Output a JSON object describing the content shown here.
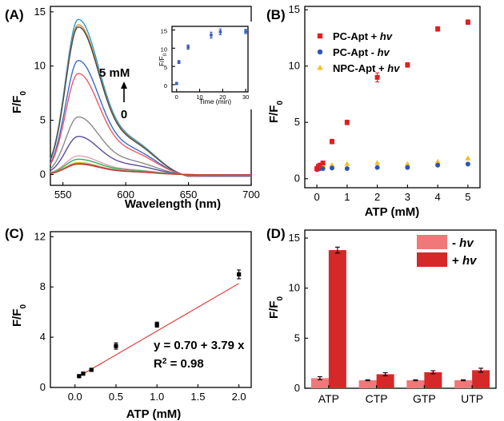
{
  "chart_data": [
    {
      "panel": "(A)",
      "type": "line",
      "xlabel": "Wavelength (nm)",
      "ylabel": "F/F",
      "ylabel_sub": "0",
      "xlim": [
        540,
        700
      ],
      "ylim": [
        -1,
        15.5
      ],
      "xticks": [
        550,
        600,
        650,
        700
      ],
      "yticks": [
        0,
        5,
        10,
        15
      ],
      "annotation_top": "5 mM",
      "annotation_bottom": "0",
      "series": [
        {
          "color": "#2a9bd0",
          "peak": 14.3,
          "shoulder": 5.9
        },
        {
          "color": "#e08a2a",
          "peak": 13.8,
          "shoulder": 5.7
        },
        {
          "color": "#4a4a4a",
          "peak": 13.6,
          "shoulder": 5.6
        },
        {
          "color": "#3a6cc4",
          "peak": 10.5,
          "shoulder": 4.4
        },
        {
          "color": "#e85a6a",
          "peak": 9.3,
          "shoulder": 3.9
        },
        {
          "color": "#8a8a8a",
          "peak": 5.3,
          "shoulder": 2.3
        },
        {
          "color": "#5a4aa0",
          "peak": 3.5,
          "shoulder": 1.6
        },
        {
          "color": "#e0a0b0",
          "peak": 1.7,
          "shoulder": 0.8
        },
        {
          "color": "#30b060",
          "peak": 1.4,
          "shoulder": 0.7
        },
        {
          "color": "#d4c040",
          "peak": 1.1,
          "shoulder": 0.55
        },
        {
          "color": "#a040c0",
          "peak": 1.0,
          "shoulder": 0.5
        },
        {
          "color": "#c04030",
          "peak": 0.95,
          "shoulder": 0.45
        }
      ],
      "inset": {
        "xlabel": "Time (min)",
        "ylabel": "F/F",
        "ylabel_sub": "0",
        "xlim": [
          -2,
          31
        ],
        "ylim": [
          -2,
          16
        ],
        "xticks": [
          0,
          10,
          20,
          30
        ],
        "yticks": [
          0,
          5,
          10,
          15
        ],
        "x": [
          0,
          1,
          5,
          15,
          19,
          30
        ],
        "y": [
          0.3,
          6.2,
          10.3,
          13.6,
          14.5,
          14.6
        ],
        "err": [
          0.3,
          0.4,
          0.6,
          0.8,
          0.8,
          0.6
        ],
        "color": "#3a5fb8"
      }
    },
    {
      "panel": "(B)",
      "type": "scatter",
      "xlabel": "ATP (mM)",
      "ylabel": "F/F",
      "ylabel_sub": "0",
      "xlim": [
        -0.4,
        5.4
      ],
      "ylim": [
        -0.8,
        15.3
      ],
      "xticks": [
        0,
        1,
        2,
        3,
        4,
        5
      ],
      "yticks": [
        0,
        5,
        10,
        15
      ],
      "series": [
        {
          "name": "PC-Apt + hv",
          "color": "#e02020",
          "marker": "square",
          "x": [
            0,
            0.05,
            0.1,
            0.2,
            0.5,
            1,
            2,
            3,
            4,
            5
          ],
          "y": [
            0.9,
            1.1,
            1.2,
            1.4,
            3.3,
            5.0,
            9.0,
            10.1,
            13.3,
            13.9
          ],
          "err": [
            0.1,
            0.1,
            0.1,
            0.1,
            0.2,
            0.2,
            0.4,
            0.2,
            0.2,
            0.2
          ]
        },
        {
          "name": "PC-Apt - hv",
          "color": "#2f55b0",
          "marker": "circle",
          "x": [
            0,
            0.05,
            0.1,
            0.2,
            0.5,
            1,
            2,
            3,
            4,
            5
          ],
          "y": [
            0.8,
            0.85,
            0.9,
            0.9,
            0.95,
            0.9,
            1.0,
            1.0,
            1.2,
            1.3
          ],
          "err": [
            0,
            0,
            0,
            0,
            0,
            0,
            0,
            0,
            0,
            0
          ]
        },
        {
          "name": "NPC-Apt + hv",
          "color": "#f2c020",
          "marker": "triangle",
          "x": [
            0,
            0.05,
            0.1,
            0.2,
            0.5,
            1,
            2,
            3,
            4,
            5
          ],
          "y": [
            1.0,
            1.1,
            1.2,
            1.2,
            1.2,
            1.3,
            1.4,
            1.3,
            1.5,
            1.8
          ],
          "err": [
            0,
            0,
            0,
            0,
            0,
            0,
            0,
            0,
            0,
            0
          ]
        }
      ],
      "legend_position": "top-left"
    },
    {
      "panel": "(C)",
      "type": "scatter",
      "xlabel": "ATP (mM)",
      "ylabel": "F/F",
      "ylabel_sub": "0",
      "xlim": [
        -0.3,
        2.15
      ],
      "ylim": [
        0,
        12.4
      ],
      "xticks": [
        0.0,
        0.5,
        1.0,
        1.5,
        2.0
      ],
      "xticklabels": [
        "0.0",
        "0.5",
        "1.0",
        "1.5",
        "2.0"
      ],
      "yticks": [
        0,
        4,
        8,
        12
      ],
      "x": [
        0.05,
        0.1,
        0.2,
        0.5,
        1.0,
        2.0
      ],
      "y": [
        0.9,
        1.1,
        1.4,
        3.3,
        5.0,
        9.0
      ],
      "err": [
        0.1,
        0.1,
        0.1,
        0.25,
        0.2,
        0.35
      ],
      "fit": {
        "intercept": 0.7,
        "slope": 3.79,
        "color": "#e03030",
        "x0": 0.05,
        "x1": 2.0
      },
      "equation": "y = 0.70 + 3.79 x",
      "r2_label": "R",
      "r2_sup": "2",
      "r2_value": " = 0.98"
    },
    {
      "panel": "(D)",
      "type": "bar",
      "ylabel": "F/F",
      "ylabel_sub": "0",
      "ylim": [
        0,
        15.8
      ],
      "yticks": [
        0,
        5,
        10,
        15
      ],
      "categories": [
        "ATP",
        "CTP",
        "GTP",
        "UTP"
      ],
      "series": [
        {
          "name": "- hv",
          "color": "#f07878",
          "values": [
            1.0,
            0.8,
            0.8,
            0.8
          ],
          "err": [
            0.15,
            0.05,
            0.05,
            0.05
          ]
        },
        {
          "name": "+ hv",
          "color": "#d62828",
          "values": [
            13.8,
            1.4,
            1.6,
            1.8
          ],
          "err": [
            0.3,
            0.15,
            0.15,
            0.2
          ]
        }
      ],
      "legend_position": "top-right"
    }
  ]
}
